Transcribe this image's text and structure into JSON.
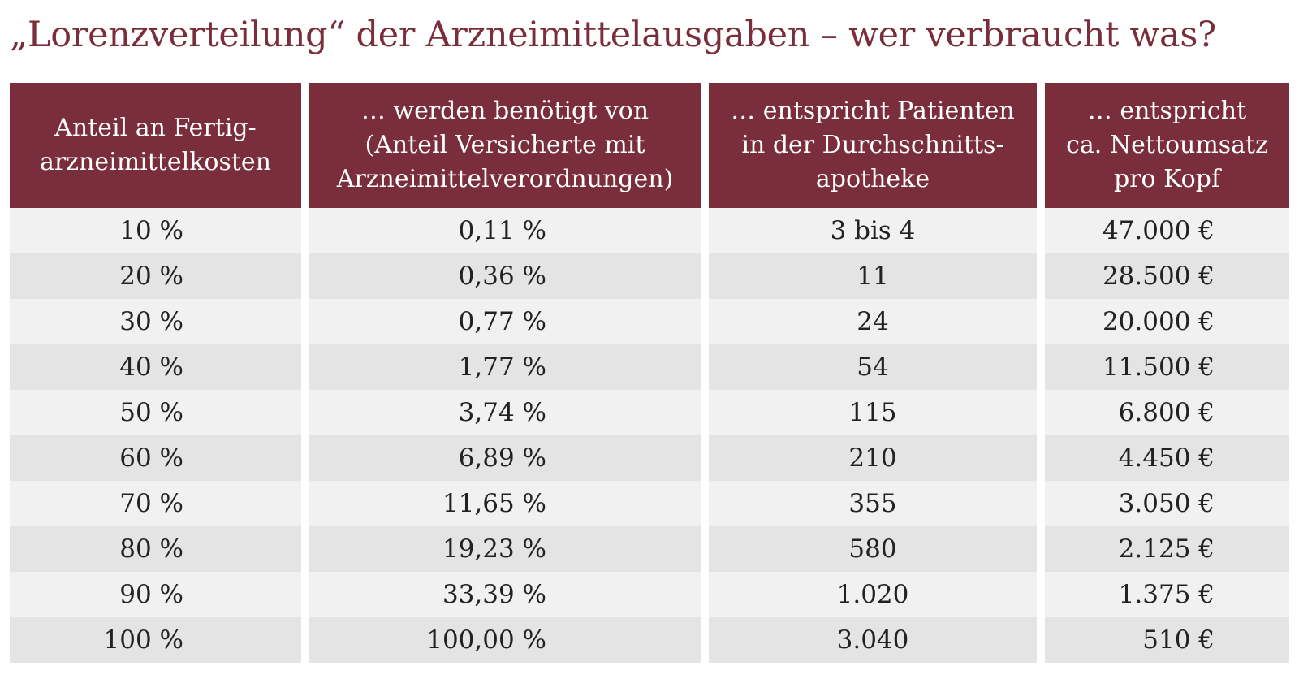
{
  "title": "„Lorenzverteilung“ der Arzneimittelausgaben – wer verbraucht was?",
  "colors": {
    "header_bg": "#7a2d3b",
    "title": "#7a2d3b",
    "row_light": "#f1f1f1",
    "row_dark": "#e4e4e4"
  },
  "table": {
    "headers": [
      "Anteil an Fertig-\narzneimittelkosten",
      "… werden benötigt von\n(Anteil Versicherte mit\nArzneimittelverordnungen)",
      "… entspricht Patienten\nin der Durchschnitts-\napotheke",
      "… entspricht\nca. Nettoumsatz\npro Kopf"
    ],
    "rows": [
      [
        "10 %",
        "0,11 %",
        "3 bis 4",
        "47.000 €"
      ],
      [
        "20 %",
        "0,36 %",
        "11",
        "28.500 €"
      ],
      [
        "30 %",
        "0,77 %",
        "24",
        "20.000 €"
      ],
      [
        "40 %",
        "1,77 %",
        "54",
        "11.500 €"
      ],
      [
        "50 %",
        "3,74 %",
        "115",
        "6.800 €"
      ],
      [
        "60 %",
        "6,89 %",
        "210",
        "4.450 €"
      ],
      [
        "70 %",
        "11,65 %",
        "355",
        "3.050 €"
      ],
      [
        "80 %",
        "19,23 %",
        "580",
        "2.125 €"
      ],
      [
        "90 %",
        "33,39 %",
        "1.020",
        "1.375 €"
      ],
      [
        "100 %",
        "100,00 %",
        "3.040",
        "510 €"
      ]
    ]
  }
}
